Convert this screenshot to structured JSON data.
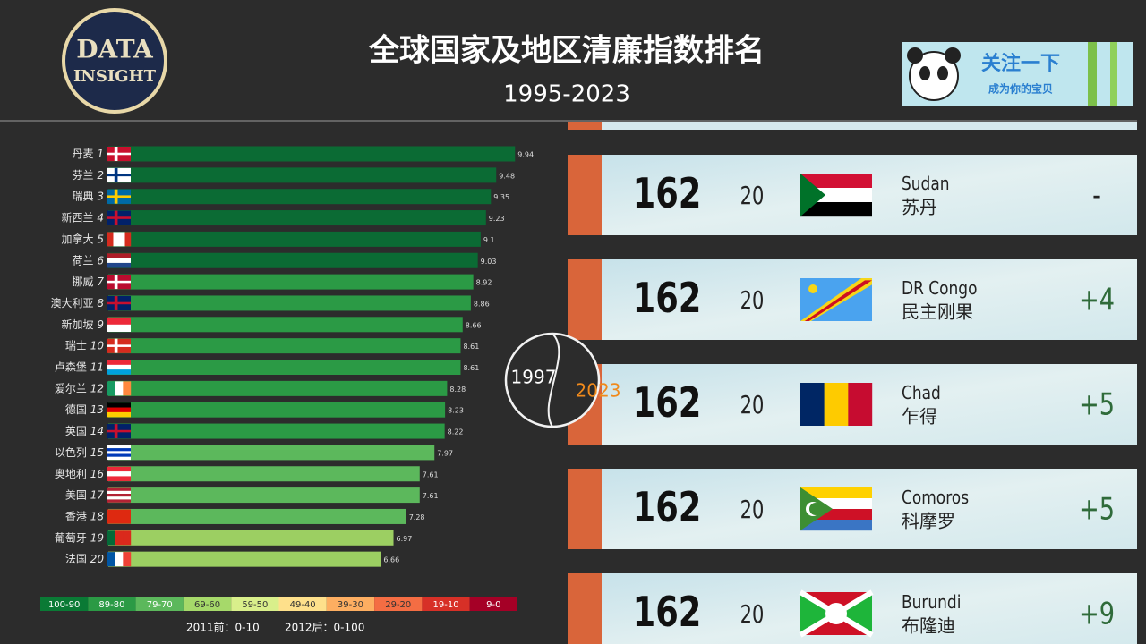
{
  "header": {
    "logo": [
      "DATA",
      "INSIGHT"
    ],
    "title": "全球国家及地区清廉指数排名",
    "subtitle": "1995-2023",
    "banner": [
      "关注一下",
      "成为你的宝贝"
    ]
  },
  "chart_data": {
    "type": "bar",
    "orientation": "horizontal",
    "categories": [
      "丹麦",
      "芬兰",
      "瑞典",
      "新西兰",
      "加拿大",
      "荷兰",
      "挪威",
      "澳大利亚",
      "新加坡",
      "瑞士",
      "卢森堡",
      "爱尔兰",
      "德国",
      "英国",
      "以色列",
      "奥地利",
      "美国",
      "香港",
      "葡萄牙",
      "法国"
    ],
    "ranks": [
      1,
      2,
      3,
      4,
      5,
      6,
      7,
      8,
      9,
      10,
      11,
      12,
      13,
      14,
      15,
      16,
      17,
      18,
      19,
      20
    ],
    "values": [
      9.94,
      9.48,
      9.35,
      9.23,
      9.1,
      9.03,
      8.92,
      8.86,
      8.66,
      8.61,
      8.61,
      8.28,
      8.23,
      8.22,
      7.97,
      7.61,
      7.61,
      7.28,
      6.97,
      6.66
    ],
    "colors": [
      "#0b6b34",
      "#0b6b34",
      "#0b6b34",
      "#0b6b34",
      "#0b6b34",
      "#0b6b34",
      "#2b9a45",
      "#2b9a45",
      "#2b9a45",
      "#2b9a45",
      "#2b9a45",
      "#2b9a45",
      "#2b9a45",
      "#2b9a45",
      "#5cb85c",
      "#5cb85c",
      "#5cb85c",
      "#5cb85c",
      "#9ccf62",
      "#9ccf62"
    ]
  },
  "legend": {
    "items": [
      {
        "label": "100-90",
        "color": "#0a7a35"
      },
      {
        "label": "89-80",
        "color": "#2b9a45"
      },
      {
        "label": "79-70",
        "color": "#5cb85c"
      },
      {
        "label": "69-60",
        "color": "#a6d96a"
      },
      {
        "label": "59-50",
        "color": "#d9ef8b"
      },
      {
        "label": "49-40",
        "color": "#fee08b"
      },
      {
        "label": "39-30",
        "color": "#fdae61"
      },
      {
        "label": "29-20",
        "color": "#f46d43"
      },
      {
        "label": "19-10",
        "color": "#d73027"
      },
      {
        "label": "9-0",
        "color": "#a50026"
      }
    ],
    "notes": [
      "2011前：0-10",
      "2012后：0-100"
    ]
  },
  "year_dial": {
    "start": 1997,
    "current": 2023
  },
  "cards": [
    {
      "rank": 162,
      "score": 20,
      "name_en": "Sudan",
      "name_zh": "苏丹",
      "change": "-"
    },
    {
      "rank": 162,
      "score": 20,
      "name_en": "DR Congo",
      "name_zh": "民主刚果",
      "change": "+4"
    },
    {
      "rank": 162,
      "score": 20,
      "name_en": "Chad",
      "name_zh": "乍得",
      "change": "+5"
    },
    {
      "rank": 162,
      "score": 20,
      "name_en": "Comoros",
      "name_zh": "科摩罗",
      "change": "+5"
    },
    {
      "rank": 162,
      "score": 20,
      "name_en": "Burundi",
      "name_zh": "布隆迪",
      "change": "+9"
    }
  ]
}
